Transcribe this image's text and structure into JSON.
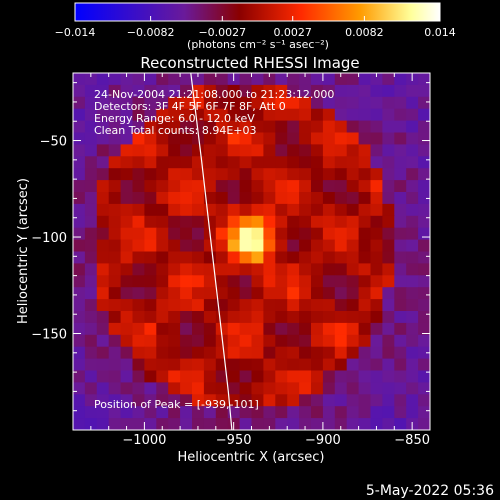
{
  "colorbar": {
    "tick_labels": [
      "−0.014",
      "−0.0082",
      "−0.0027",
      "0.0027",
      "0.0082",
      "0.014"
    ],
    "tick_values": [
      -0.014,
      -0.0082,
      -0.0027,
      0.0027,
      0.0082,
      0.014
    ],
    "range": [
      -0.014,
      0.014
    ],
    "unit_label": "(photons cm⁻² s⁻¹ asec⁻²)",
    "colors": [
      "#0000ff",
      "#6a1a9a",
      "#8a0000",
      "#ff2a00",
      "#ff9a00",
      "#ffff9a",
      "#ffffff"
    ]
  },
  "chart_data": {
    "type": "heatmap",
    "title": "Reconstructed RHESSI Image",
    "xlabel": "Heliocentric X (arcsec)",
    "ylabel": "Heliocentric Y (arcsec)",
    "xlim": [
      -1040,
      -840
    ],
    "ylim": [
      -200,
      -15
    ],
    "xticks": [
      -1000,
      -950,
      -900,
      -850
    ],
    "yticks": [
      -50,
      -100,
      -150
    ],
    "xtick_labels": [
      "−1000",
      "−950",
      "−900",
      "−850"
    ],
    "ytick_labels": [
      "−50",
      "−100",
      "−150"
    ],
    "annotations": [
      "24-Nov-2004 21:21:08.000 to 21:23:12.000",
      "Detectors: 3F 4F 5F 6F 7F 8F, Att 0",
      "Energy Range: 6.0 - 12.0 keV",
      "Clean     Total counts: 8.94E+03"
    ],
    "peak_label": "Position of Peak = [-939,-101]",
    "peak": {
      "x": -939,
      "y": -101,
      "value": 0.014
    },
    "limb_curve": [
      [
        -974,
        -15
      ],
      [
        -968,
        -60
      ],
      [
        -963,
        -100
      ],
      [
        -958,
        -140
      ],
      [
        -953,
        -180
      ],
      [
        -951,
        -200
      ]
    ]
  },
  "footer": {
    "date": "5-May-2022 05:36"
  }
}
